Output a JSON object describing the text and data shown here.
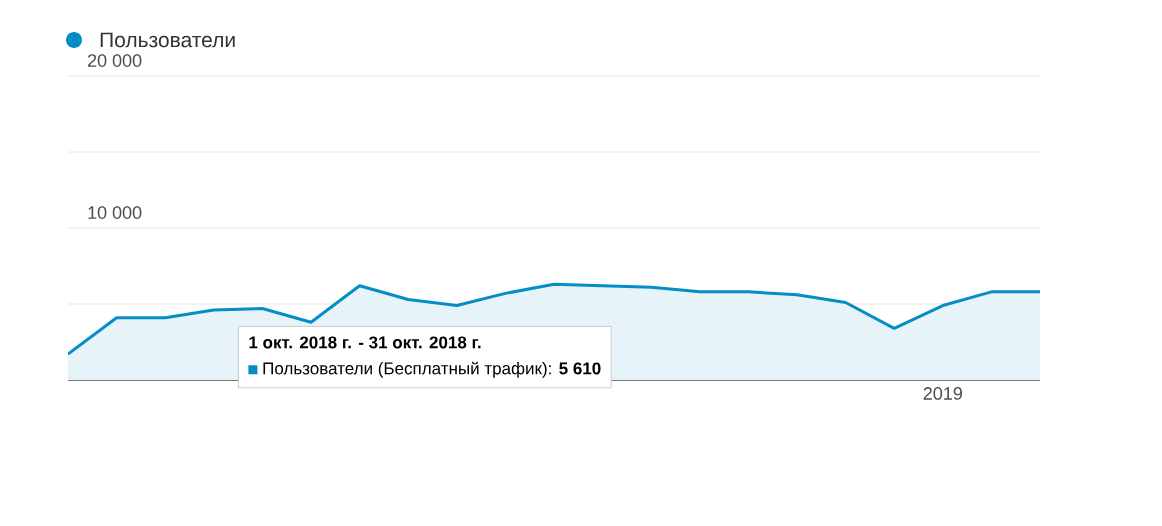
{
  "chart_data": {
    "type": "area",
    "categories": [
      null,
      null,
      null,
      null,
      null,
      null,
      null,
      null,
      null,
      null,
      null,
      null,
      null,
      null,
      null,
      null,
      null,
      null,
      "2019",
      null,
      null
    ],
    "series": [
      {
        "name": "Пользователи",
        "color": "#058dc7",
        "values": [
          1700,
          4100,
          4100,
          4600,
          4700,
          3800,
          6200,
          5300,
          4900,
          5700,
          6300,
          6200,
          6100,
          5800,
          5800,
          5610,
          5100,
          3400,
          4900,
          5800,
          5800
        ]
      }
    ],
    "ylim": [
      0,
      20000
    ],
    "yticks": [
      {
        "value": 5000,
        "label": null
      },
      {
        "value": 10000,
        "label": "10 000"
      },
      {
        "value": 15000,
        "label": null
      },
      {
        "value": 20000,
        "label": "20 000"
      }
    ],
    "grid": "y",
    "legend": "top left",
    "annotations": [
      "1 окт. 2018 г. - 31 окт. 2018 г.",
      "Пользователи (Бесплатный трафик): **5 610**"
    ]
  }
}
